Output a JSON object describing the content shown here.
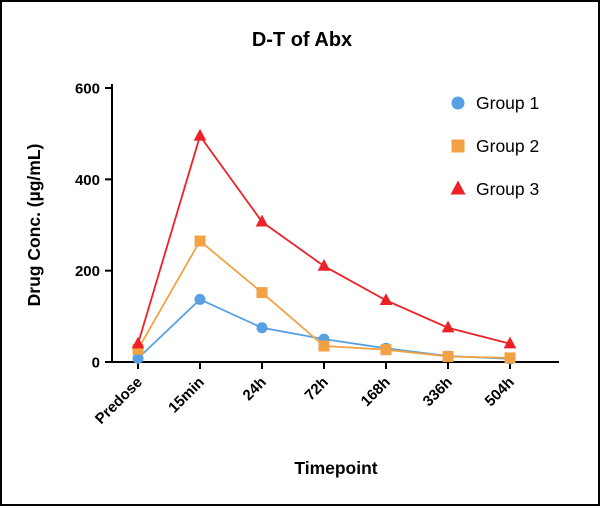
{
  "chart_data": {
    "type": "line",
    "title": "D-T of Abx",
    "xlabel": "Timepoint",
    "ylabel": "Drug Conc. (µg/mL)",
    "categories": [
      "Predose",
      "15min",
      "24h",
      "72h",
      "168h",
      "336h",
      "504h"
    ],
    "ylim": [
      0,
      600
    ],
    "yticks": [
      0,
      200,
      400,
      600
    ],
    "grid": false,
    "legend_position": "top-right-inside",
    "series": [
      {
        "name": "Group 1",
        "marker": "circle",
        "color": "#56A0E3",
        "values": [
          8,
          137,
          75,
          50,
          30,
          13,
          7
        ]
      },
      {
        "name": "Group 2",
        "marker": "square",
        "color": "#F2A243",
        "values": [
          28,
          265,
          152,
          35,
          27,
          12,
          9
        ]
      },
      {
        "name": "Group 3",
        "marker": "triangle",
        "color": "#EC2227",
        "values": [
          40,
          495,
          307,
          210,
          135,
          75,
          40
        ]
      }
    ]
  }
}
